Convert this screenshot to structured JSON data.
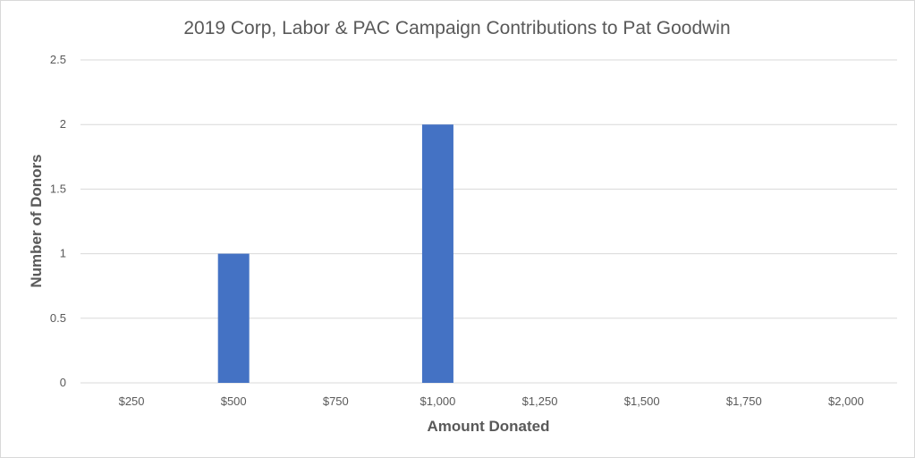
{
  "chart_data": {
    "type": "bar",
    "title": "2019 Corp, Labor & PAC Campaign Contributions to Pat Goodwin",
    "xlabel": "Amount Donated",
    "ylabel": "Number of Donors",
    "categories": [
      "$250",
      "$500",
      "$750",
      "$1,000",
      "$1,250",
      "$1,500",
      "$1,750",
      "$2,000"
    ],
    "values": [
      0,
      1,
      0,
      2,
      0,
      0,
      0,
      0
    ],
    "ylim": [
      0,
      2.5
    ],
    "yticks": [
      "0",
      "0.5",
      "1",
      "1.5",
      "2",
      "2.5"
    ],
    "grid": true,
    "bar_color": "#4472c4"
  }
}
